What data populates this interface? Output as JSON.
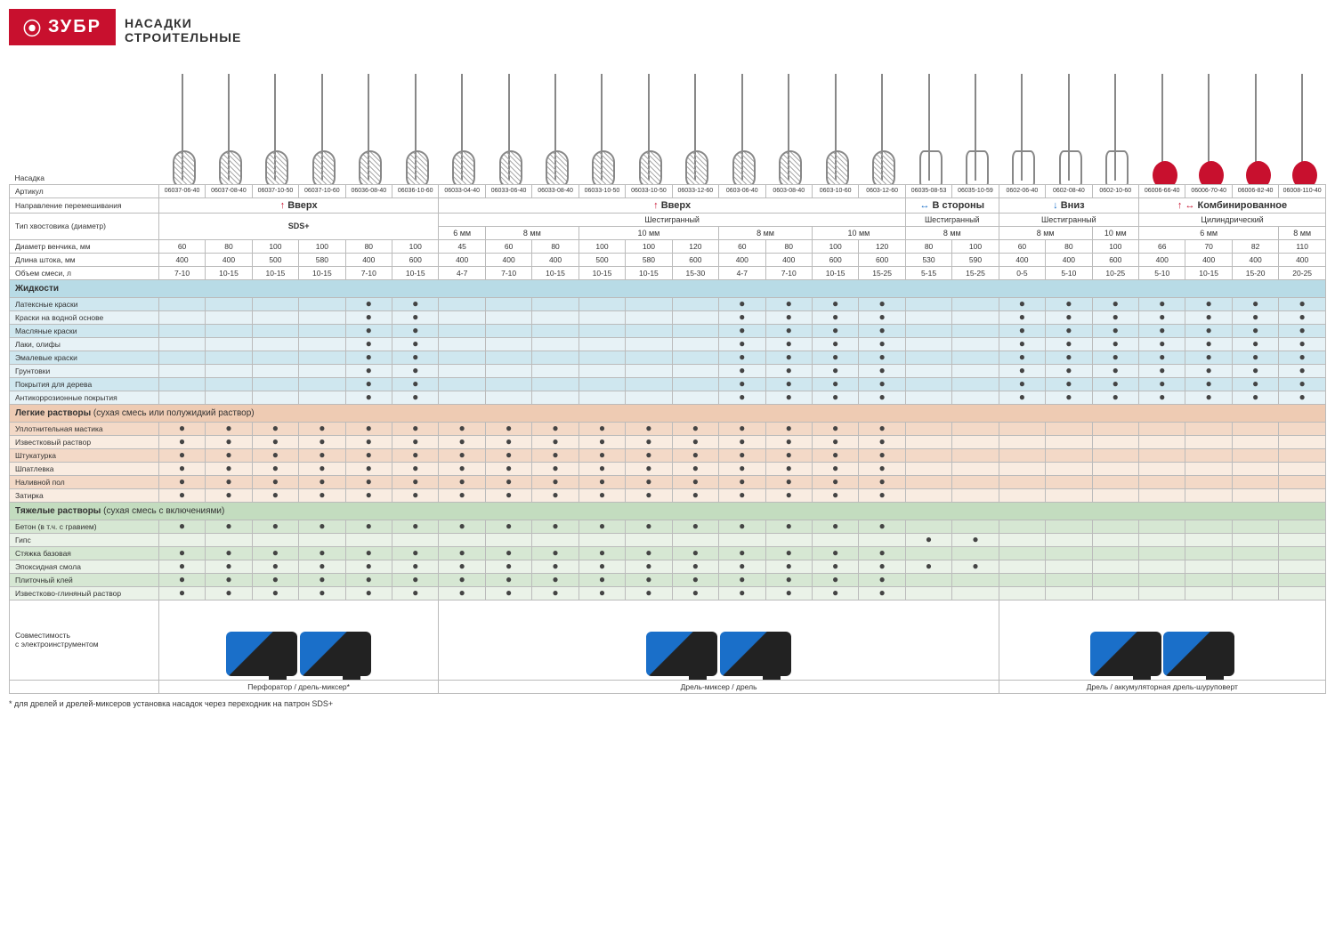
{
  "brand": "ЗУБР",
  "title1": "НАСАДКИ",
  "title2": "СТРОИТЕЛЬНЫЕ",
  "nasadka_label": "Насадка",
  "row_labels": {
    "article": "Артикул",
    "direction": "Направление перемешивания",
    "shank": "Тип хвостовика (диаметр)",
    "whisk_d": "Диаметр венчика, мм",
    "rod_len": "Длина штока, мм",
    "mix_vol": "Объем смеси, л"
  },
  "articles": [
    "06037-06-40",
    "06037-08-40",
    "06037-10-50",
    "06037-10-60",
    "06036-08-40",
    "06036-10-60",
    "06033-04-40",
    "06033-06-40",
    "06033-08-40",
    "06033-10-50",
    "06033-10-50",
    "06033-12-60",
    "0603-06-40",
    "0603-08-40",
    "0603-10-60",
    "0603-12-60",
    "06035-08-53",
    "06035-10-59",
    "0602-06-40",
    "0602-08-40",
    "0602-10-60",
    "06006-66-40",
    "06006-70-40",
    "06006-82-40",
    "06008-110-40"
  ],
  "directions": [
    {
      "span": 6,
      "label": "Вверх",
      "arrows": "↑",
      "cls": "arrow"
    },
    {
      "span": 10,
      "label": "Вверх",
      "arrows": "↑",
      "cls": "arrow"
    },
    {
      "span": 2,
      "label": "В стороны",
      "arrows": "↔",
      "cls": "blue-arrow"
    },
    {
      "span": 3,
      "label": "Вниз",
      "arrows": "↓",
      "cls": "blue-arrow"
    },
    {
      "span": 4,
      "label": "Комбинированное",
      "arrows": "↑ ↔",
      "cls": "arrow"
    }
  ],
  "shank_top": [
    {
      "span": 6,
      "label": "SDS+"
    },
    {
      "span": 10,
      "label": "Шестигранный"
    },
    {
      "span": 2,
      "label": "Шестигранный"
    },
    {
      "span": 3,
      "label": "Шестигранный"
    },
    {
      "span": 4,
      "label": "Цилиндрический"
    }
  ],
  "shank_sub": [
    {
      "span": 6,
      "label": ""
    },
    {
      "span": 1,
      "label": "6 мм"
    },
    {
      "span": 2,
      "label": "8 мм"
    },
    {
      "span": 3,
      "label": "10 мм"
    },
    {
      "span": 2,
      "label": "8 мм"
    },
    {
      "span": 2,
      "label": "10 мм"
    },
    {
      "span": 2,
      "label": "8 мм"
    },
    {
      "span": 2,
      "label": "8 мм"
    },
    {
      "span": 1,
      "label": "10 мм"
    },
    {
      "span": 3,
      "label": "6 мм"
    },
    {
      "span": 1,
      "label": "8 мм"
    }
  ],
  "whisk_d": [
    "60",
    "80",
    "100",
    "100",
    "80",
    "100",
    "45",
    "60",
    "80",
    "100",
    "100",
    "120",
    "60",
    "80",
    "100",
    "120",
    "80",
    "100",
    "60",
    "80",
    "100",
    "66",
    "70",
    "82",
    "110"
  ],
  "rod_len": [
    "400",
    "400",
    "500",
    "580",
    "400",
    "600",
    "400",
    "400",
    "400",
    "500",
    "580",
    "600",
    "400",
    "400",
    "600",
    "600",
    "530",
    "590",
    "400",
    "400",
    "600",
    "400",
    "400",
    "400",
    "400"
  ],
  "mix_vol": [
    "7-10",
    "10-15",
    "10-15",
    "10-15",
    "7-10",
    "10-15",
    "4-7",
    "7-10",
    "10-15",
    "10-15",
    "10-15",
    "15-30",
    "4-7",
    "7-10",
    "10-15",
    "15-25",
    "5-15",
    "15-25",
    "0-5",
    "5-10",
    "10-25",
    "5-10",
    "10-15",
    "15-20",
    "20-25"
  ],
  "sections": [
    {
      "name": "Жидкости",
      "cls": "liquids",
      "sec_cls": "sec-liquids",
      "sub": "",
      "rows": [
        {
          "label": "Латексные краски",
          "dots": [
            0,
            0,
            0,
            0,
            1,
            1,
            0,
            0,
            0,
            0,
            0,
            0,
            1,
            1,
            1,
            1,
            0,
            0,
            1,
            1,
            1,
            1,
            1,
            1,
            1
          ]
        },
        {
          "label": "Краски на водной основе",
          "dots": [
            0,
            0,
            0,
            0,
            1,
            1,
            0,
            0,
            0,
            0,
            0,
            0,
            1,
            1,
            1,
            1,
            0,
            0,
            1,
            1,
            1,
            1,
            1,
            1,
            1
          ]
        },
        {
          "label": "Масляные краски",
          "dots": [
            0,
            0,
            0,
            0,
            1,
            1,
            0,
            0,
            0,
            0,
            0,
            0,
            1,
            1,
            1,
            1,
            0,
            0,
            1,
            1,
            1,
            1,
            1,
            1,
            1
          ]
        },
        {
          "label": "Лаки, олифы",
          "dots": [
            0,
            0,
            0,
            0,
            1,
            1,
            0,
            0,
            0,
            0,
            0,
            0,
            1,
            1,
            1,
            1,
            0,
            0,
            1,
            1,
            1,
            1,
            1,
            1,
            1
          ]
        },
        {
          "label": "Эмалевые краски",
          "dots": [
            0,
            0,
            0,
            0,
            1,
            1,
            0,
            0,
            0,
            0,
            0,
            0,
            1,
            1,
            1,
            1,
            0,
            0,
            1,
            1,
            1,
            1,
            1,
            1,
            1
          ]
        },
        {
          "label": "Грунтовки",
          "dots": [
            0,
            0,
            0,
            0,
            1,
            1,
            0,
            0,
            0,
            0,
            0,
            0,
            1,
            1,
            1,
            1,
            0,
            0,
            1,
            1,
            1,
            1,
            1,
            1,
            1
          ]
        },
        {
          "label": "Покрытия для дерева",
          "dots": [
            0,
            0,
            0,
            0,
            1,
            1,
            0,
            0,
            0,
            0,
            0,
            0,
            1,
            1,
            1,
            1,
            0,
            0,
            1,
            1,
            1,
            1,
            1,
            1,
            1
          ]
        },
        {
          "label": "Антикоррозионные покрытия",
          "dots": [
            0,
            0,
            0,
            0,
            1,
            1,
            0,
            0,
            0,
            0,
            0,
            0,
            1,
            1,
            1,
            1,
            0,
            0,
            1,
            1,
            1,
            1,
            1,
            1,
            1
          ]
        }
      ]
    },
    {
      "name": "Легкие растворы",
      "cls": "light",
      "sec_cls": "sec-light",
      "sub": " (сухая смесь или полужидкий раствор)",
      "rows": [
        {
          "label": "Уплотнительная мастика",
          "dots": [
            1,
            1,
            1,
            1,
            1,
            1,
            1,
            1,
            1,
            1,
            1,
            1,
            1,
            1,
            1,
            1,
            0,
            0,
            0,
            0,
            0,
            0,
            0,
            0,
            0
          ]
        },
        {
          "label": "Известковый раствор",
          "dots": [
            1,
            1,
            1,
            1,
            1,
            1,
            1,
            1,
            1,
            1,
            1,
            1,
            1,
            1,
            1,
            1,
            0,
            0,
            0,
            0,
            0,
            0,
            0,
            0,
            0
          ]
        },
        {
          "label": "Штукатурка",
          "dots": [
            1,
            1,
            1,
            1,
            1,
            1,
            1,
            1,
            1,
            1,
            1,
            1,
            1,
            1,
            1,
            1,
            0,
            0,
            0,
            0,
            0,
            0,
            0,
            0,
            0
          ]
        },
        {
          "label": "Шпатлевка",
          "dots": [
            1,
            1,
            1,
            1,
            1,
            1,
            1,
            1,
            1,
            1,
            1,
            1,
            1,
            1,
            1,
            1,
            0,
            0,
            0,
            0,
            0,
            0,
            0,
            0,
            0
          ]
        },
        {
          "label": "Наливной пол",
          "dots": [
            1,
            1,
            1,
            1,
            1,
            1,
            1,
            1,
            1,
            1,
            1,
            1,
            1,
            1,
            1,
            1,
            0,
            0,
            0,
            0,
            0,
            0,
            0,
            0,
            0
          ]
        },
        {
          "label": "Затирка",
          "dots": [
            1,
            1,
            1,
            1,
            1,
            1,
            1,
            1,
            1,
            1,
            1,
            1,
            1,
            1,
            1,
            1,
            0,
            0,
            0,
            0,
            0,
            0,
            0,
            0,
            0
          ]
        }
      ]
    },
    {
      "name": "Тяжелые растворы",
      "cls": "heavy",
      "sec_cls": "sec-heavy",
      "sub": " (сухая смесь с включениями)",
      "rows": [
        {
          "label": "Бетон (в т.ч. с гравием)",
          "dots": [
            1,
            1,
            1,
            1,
            1,
            1,
            1,
            1,
            1,
            1,
            1,
            1,
            1,
            1,
            1,
            1,
            0,
            0,
            0,
            0,
            0,
            0,
            0,
            0,
            0
          ]
        },
        {
          "label": "Гипс",
          "dots": [
            0,
            0,
            0,
            0,
            0,
            0,
            0,
            0,
            0,
            0,
            0,
            0,
            0,
            0,
            0,
            0,
            1,
            1,
            0,
            0,
            0,
            0,
            0,
            0,
            0
          ]
        },
        {
          "label": "Стяжка базовая",
          "dots": [
            1,
            1,
            1,
            1,
            1,
            1,
            1,
            1,
            1,
            1,
            1,
            1,
            1,
            1,
            1,
            1,
            0,
            0,
            0,
            0,
            0,
            0,
            0,
            0,
            0
          ]
        },
        {
          "label": "Эпоксидная смола",
          "dots": [
            1,
            1,
            1,
            1,
            1,
            1,
            1,
            1,
            1,
            1,
            1,
            1,
            1,
            1,
            1,
            1,
            1,
            1,
            0,
            0,
            0,
            0,
            0,
            0,
            0
          ]
        },
        {
          "label": "Плиточный клей",
          "dots": [
            1,
            1,
            1,
            1,
            1,
            1,
            1,
            1,
            1,
            1,
            1,
            1,
            1,
            1,
            1,
            1,
            0,
            0,
            0,
            0,
            0,
            0,
            0,
            0,
            0
          ]
        },
        {
          "label": "Известково-глиняный раствор",
          "dots": [
            1,
            1,
            1,
            1,
            1,
            1,
            1,
            1,
            1,
            1,
            1,
            1,
            1,
            1,
            1,
            1,
            0,
            0,
            0,
            0,
            0,
            0,
            0,
            0,
            0
          ]
        }
      ]
    }
  ],
  "compat_label1": "Совместимость",
  "compat_label2": "с электроинструментом",
  "tool_captions": [
    {
      "span": 6,
      "label": "Перфоратор / дрель-миксер*"
    },
    {
      "span": 12,
      "label": "Дрель-миксер / дрель"
    },
    {
      "span": 7,
      "label": "Дрель / аккумуляторная дрель-шуруповерт"
    }
  ],
  "footnote": "* для дрелей и дрелей-миксеров установка насадок через переходник на патрон SDS+",
  "mixer_styles": [
    "",
    "",
    "",
    "",
    "",
    "",
    "",
    "",
    "",
    "",
    "",
    "",
    "",
    "",
    "",
    "",
    "cage",
    "cage",
    "cage",
    "cage",
    "cage",
    "red",
    "red",
    "red",
    "red"
  ]
}
